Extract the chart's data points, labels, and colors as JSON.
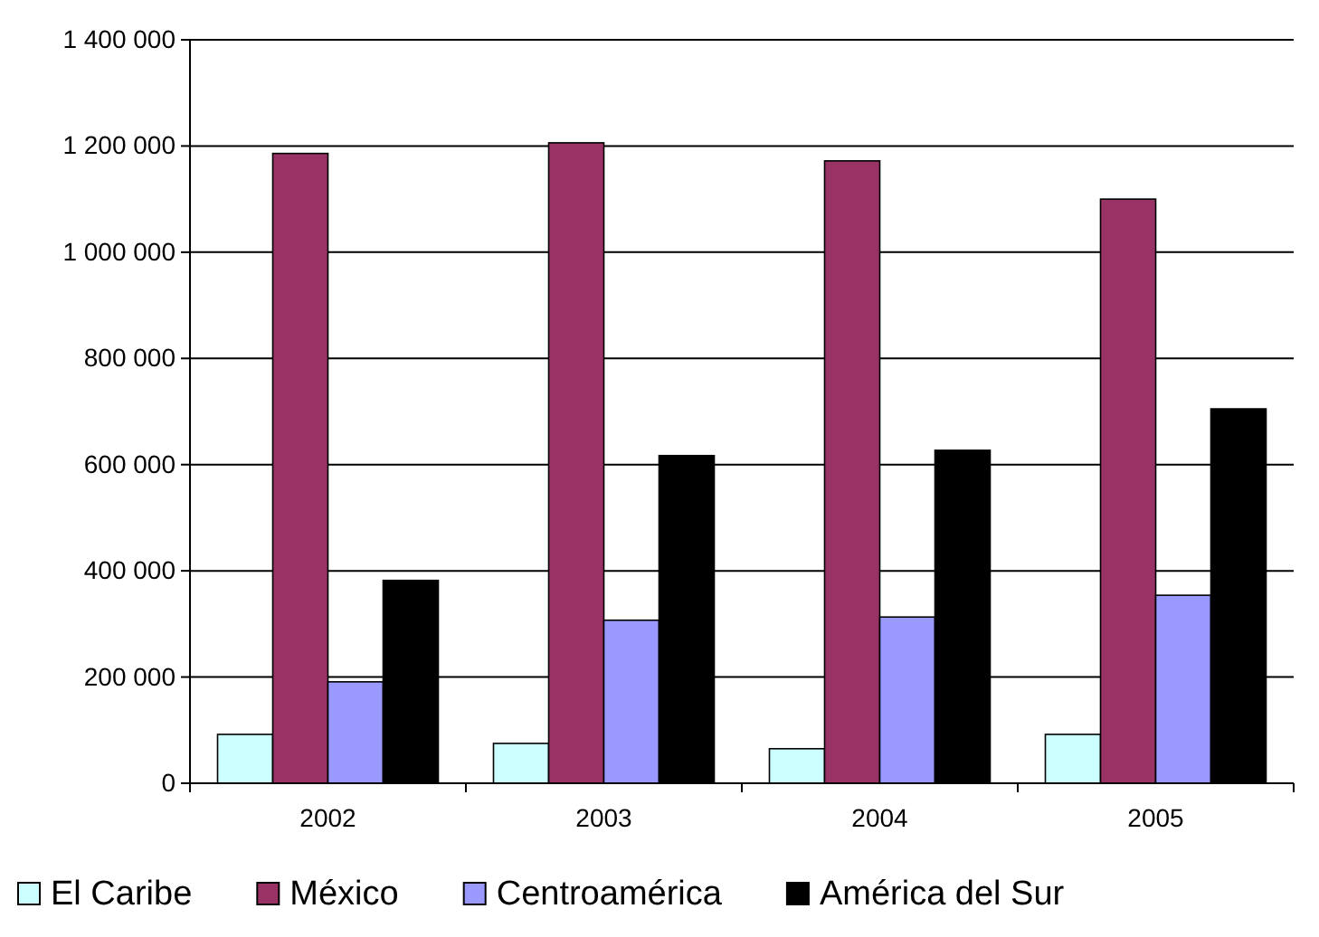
{
  "chart_data": {
    "type": "bar",
    "categories": [
      "2002",
      "2003",
      "2004",
      "2005"
    ],
    "series": [
      {
        "name": "El Caribe",
        "color": "#ccffff",
        "values": [
          92000,
          75000,
          65000,
          92000
        ]
      },
      {
        "name": "México",
        "color": "#993366",
        "values": [
          1186000,
          1206000,
          1172000,
          1100000
        ]
      },
      {
        "name": "Centroamérica",
        "color": "#9999ff",
        "values": [
          191000,
          307000,
          313000,
          354000
        ]
      },
      {
        "name": "América del Sur",
        "color": "#000000",
        "values": [
          382000,
          617000,
          627000,
          705000
        ]
      }
    ],
    "ylim": [
      0,
      1400000
    ],
    "yticks": [
      {
        "value": 0,
        "label": "0"
      },
      {
        "value": 200000,
        "label": "200 000"
      },
      {
        "value": 400000,
        "label": "400 000"
      },
      {
        "value": 600000,
        "label": "600 000"
      },
      {
        "value": 800000,
        "label": "800 000"
      },
      {
        "value": 1000000,
        "label": "1 000 000"
      },
      {
        "value": 1200000,
        "label": "1 200 000"
      },
      {
        "value": 1400000,
        "label": "1 400 000"
      }
    ],
    "grid": "y",
    "legend": "bottom"
  }
}
